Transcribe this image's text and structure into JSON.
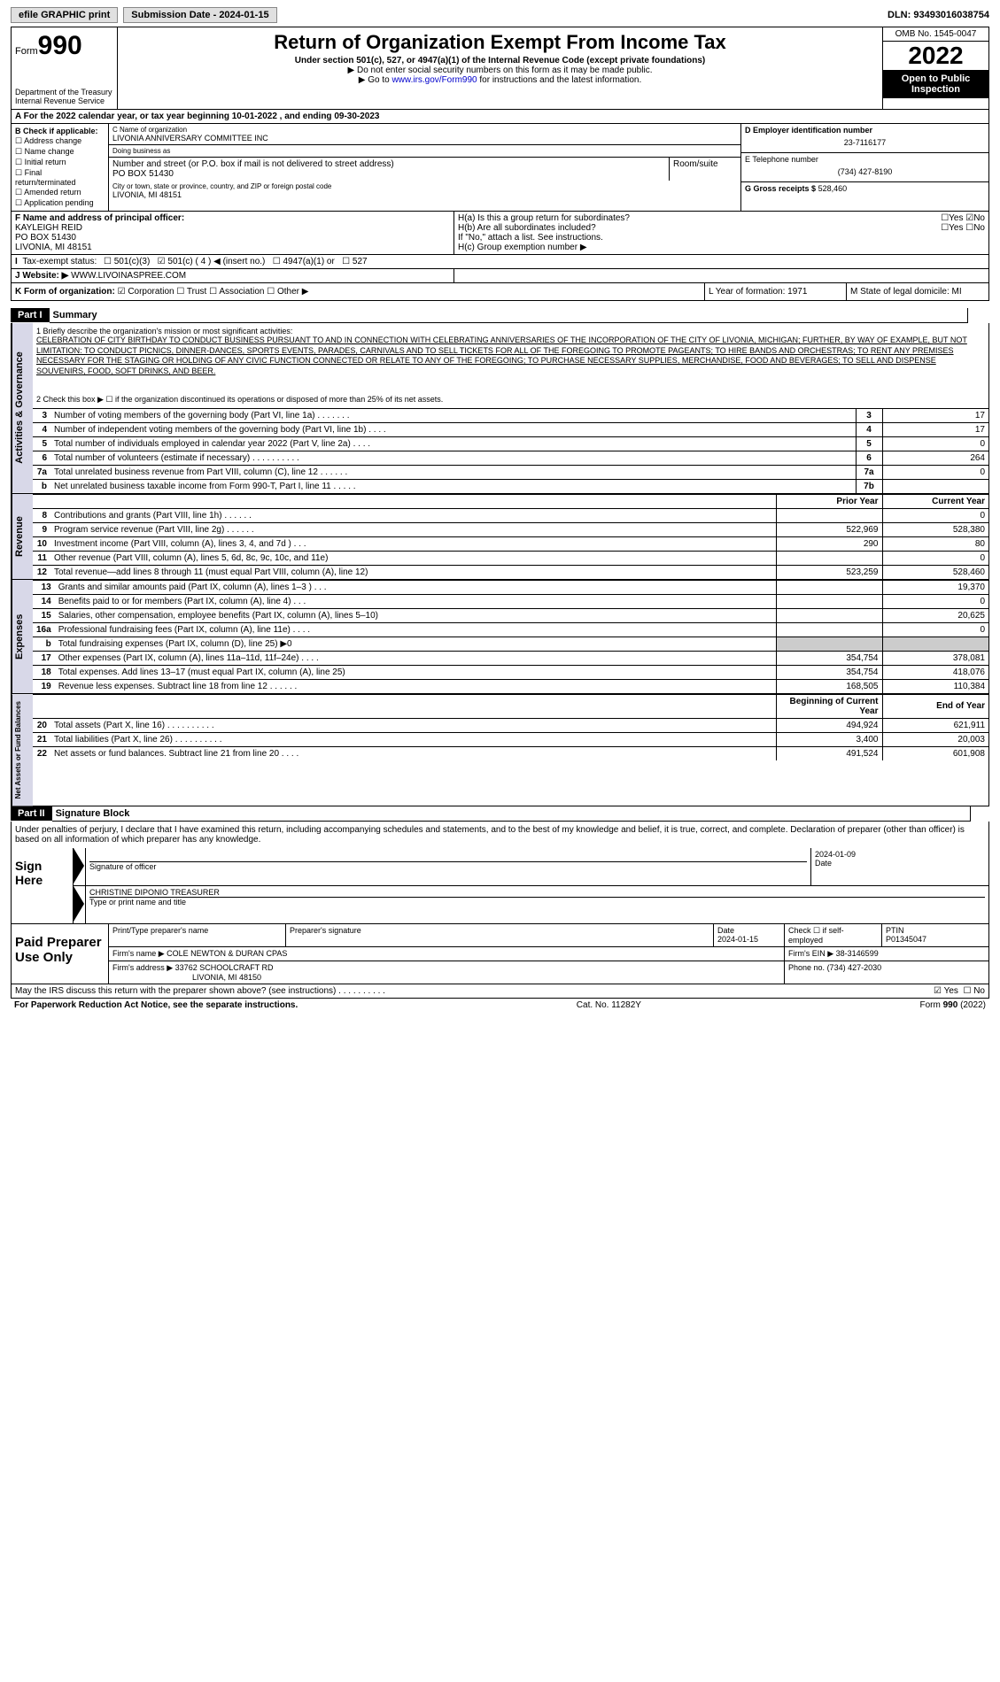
{
  "topbar": {
    "efile": "efile GRAPHIC print",
    "submission": "Submission Date - 2024-01-15",
    "dln": "DLN: 93493016038754"
  },
  "header": {
    "form_word": "Form",
    "form_num": "990",
    "dept": "Department of the Treasury Internal Revenue Service",
    "title": "Return of Organization Exempt From Income Tax",
    "sub": "Under section 501(c), 527, or 4947(a)(1) of the Internal Revenue Code (except private foundations)",
    "inst1": "▶ Do not enter social security numbers on this form as it may be made public.",
    "inst2_pre": "▶ Go to ",
    "inst2_link": "www.irs.gov/Form990",
    "inst2_post": " for instructions and the latest information.",
    "omb": "OMB No. 1545-0047",
    "year": "2022",
    "inspect": "Open to Public Inspection"
  },
  "rowA": "A For the 2022 calendar year, or tax year beginning 10-01-2022   , and ending 09-30-2023",
  "colB": {
    "title": "B Check if applicable:",
    "items": [
      "Address change",
      "Name change",
      "Initial return",
      "Final return/terminated",
      "Amended return",
      "Application pending"
    ]
  },
  "colC": {
    "name_lbl": "C Name of organization",
    "name": "LIVONIA ANNIVERSARY COMMITTEE INC",
    "dba_lbl": "Doing business as",
    "dba": "",
    "addr_lbl": "Number and street (or P.O. box if mail is not delivered to street address)",
    "addr": "PO BOX 51430",
    "room_lbl": "Room/suite",
    "city_lbl": "City or town, state or province, country, and ZIP or foreign postal code",
    "city": "LIVONIA, MI  48151"
  },
  "colD": {
    "d_lbl": "D Employer identification number",
    "ein": "23-7116177",
    "e_lbl": "E Telephone number",
    "phone": "(734) 427-8190",
    "g_lbl": "G Gross receipts $",
    "g_val": "528,460"
  },
  "rowF": {
    "f_lbl": "F  Name and address of principal officer:",
    "f_name": "KAYLEIGH REID",
    "f_addr1": "PO BOX 51430",
    "f_addr2": "LIVONIA, MI  48151",
    "ha": "H(a)  Is this a group return for subordinates?",
    "hb": "H(b)  Are all subordinates included?",
    "hb_note": "If \"No,\" attach a list. See instructions.",
    "hc": "H(c)  Group exemption number ▶"
  },
  "taxStatus": {
    "lbl": "I  Tax-exempt status:",
    "opts": [
      "501(c)(3)",
      "501(c) ( 4 ) ◀ (insert no.)",
      "4947(a)(1) or",
      "527"
    ]
  },
  "website": {
    "lbl": "J  Website: ▶",
    "val": " WWW.LIVOINASPREE.COM"
  },
  "rowK": {
    "k_lbl": "K Form of organization:",
    "k_opts": [
      "Corporation",
      "Trust",
      "Association",
      "Other ▶"
    ],
    "l": "L Year of formation: 1971",
    "m": "M State of legal domicile: MI"
  },
  "part1": {
    "hdr": "Part I",
    "title": "Summary",
    "vtab_gov": "Activities & Governance",
    "vtab_rev": "Revenue",
    "vtab_exp": "Expenses",
    "vtab_net": "Net Assets or Fund Balances",
    "q1": "1   Briefly describe the organization's mission or most significant activities:",
    "mission": "CELEBRATION OF CITY BIRTHDAY TO CONDUCT BUSINESS PURSUANT TO AND IN CONNECTION WITH CELEBRATING ANNIVERSARIES OF THE INCORPORATION OF THE CITY OF LIVONIA, MICHIGAN; FURTHER, BY WAY OF EXAMPLE, BUT NOT LIMITATION: TO CONDUCT PICNICS, DINNER-DANCES, SPORTS EVENTS, PARADES, CARNIVALS AND TO SELL TICKETS FOR ALL OF THE FOREGOING TO PROMOTE PAGEANTS; TO HIRE BANDS AND ORCHESTRAS; TO RENT ANY PREMISES NECESSARY FOR THE STAGING OR HOLDING OF ANY CIVIC FUNCTION CONNECTED OR RELATE TO ANY OF THE FOREGOING; TO PURCHASE NECESSARY SUPPLIES, MERCHANDISE, FOOD AND BEVERAGES; TO SELL AND DISPENSE SOUVENIRS, FOOD, SOFT DRINKS, AND BEER.",
    "q2": "2   Check this box ▶ ☐ if the organization discontinued its operations or disposed of more than 25% of its net assets.",
    "rows_gov": [
      {
        "n": "3",
        "desc": "Number of voting members of the governing body (Part VI, line 1a)   .    .    .    .    .    .    .",
        "box": "3",
        "val": "17"
      },
      {
        "n": "4",
        "desc": "Number of independent voting members of the governing body (Part VI, line 1b)   .    .    .    .",
        "box": "4",
        "val": "17"
      },
      {
        "n": "5",
        "desc": "Total number of individuals employed in calendar year 2022 (Part V, line 2a)   .    .    .    .",
        "box": "5",
        "val": "0"
      },
      {
        "n": "6",
        "desc": "Total number of volunteers (estimate if necessary)   .    .    .    .    .    .    .    .    .    .",
        "box": "6",
        "val": "264"
      },
      {
        "n": "7a",
        "desc": "Total unrelated business revenue from Part VIII, column (C), line 12   .    .    .    .    .    .",
        "box": "7a",
        "val": "0"
      },
      {
        "n": "b",
        "desc": "Net unrelated business taxable income from Form 990-T, Part I, line 11   .    .    .    .    .",
        "box": "7b",
        "val": ""
      }
    ],
    "col_hdrs": {
      "prior": "Prior Year",
      "current": "Current Year"
    },
    "rows_rev": [
      {
        "n": "8",
        "desc": "Contributions and grants (Part VIII, line 1h)   .    .    .    .    .    .",
        "p": "",
        "c": "0"
      },
      {
        "n": "9",
        "desc": "Program service revenue (Part VIII, line 2g)   .    .    .    .    .    .",
        "p": "522,969",
        "c": "528,380"
      },
      {
        "n": "10",
        "desc": "Investment income (Part VIII, column (A), lines 3, 4, and 7d )   .    .    .",
        "p": "290",
        "c": "80"
      },
      {
        "n": "11",
        "desc": "Other revenue (Part VIII, column (A), lines 5, 6d, 8c, 9c, 10c, and 11e)",
        "p": "",
        "c": "0"
      },
      {
        "n": "12",
        "desc": "Total revenue—add lines 8 through 11 (must equal Part VIII, column (A), line 12)",
        "p": "523,259",
        "c": "528,460"
      }
    ],
    "rows_exp": [
      {
        "n": "13",
        "desc": "Grants and similar amounts paid (Part IX, column (A), lines 1–3 )   .    .    .",
        "p": "",
        "c": "19,370"
      },
      {
        "n": "14",
        "desc": "Benefits paid to or for members (Part IX, column (A), line 4)   .    .    .",
        "p": "",
        "c": "0"
      },
      {
        "n": "15",
        "desc": "Salaries, other compensation, employee benefits (Part IX, column (A), lines 5–10)",
        "p": "",
        "c": "20,625"
      },
      {
        "n": "16a",
        "desc": "Professional fundraising fees (Part IX, column (A), line 11e)   .    .    .    .",
        "p": "",
        "c": "0"
      },
      {
        "n": "b",
        "desc": "Total fundraising expenses (Part IX, column (D), line 25) ▶0",
        "p": "shade",
        "c": "shade"
      },
      {
        "n": "17",
        "desc": "Other expenses (Part IX, column (A), lines 11a–11d, 11f–24e)   .    .    .    .",
        "p": "354,754",
        "c": "378,081"
      },
      {
        "n": "18",
        "desc": "Total expenses. Add lines 13–17 (must equal Part IX, column (A), line 25)",
        "p": "354,754",
        "c": "418,076"
      },
      {
        "n": "19",
        "desc": "Revenue less expenses. Subtract line 18 from line 12   .    .    .    .    .    .",
        "p": "168,505",
        "c": "110,384"
      }
    ],
    "net_hdrs": {
      "beg": "Beginning of Current Year",
      "end": "End of Year"
    },
    "rows_net": [
      {
        "n": "20",
        "desc": "Total assets (Part X, line 16)   .    .    .    .    .    .    .    .    .    .",
        "p": "494,924",
        "c": "621,911"
      },
      {
        "n": "21",
        "desc": "Total liabilities (Part X, line 26)   .    .    .    .    .    .    .    .    .    .",
        "p": "3,400",
        "c": "20,003"
      },
      {
        "n": "22",
        "desc": "Net assets or fund balances. Subtract line 21 from line 20   .    .    .    .",
        "p": "491,524",
        "c": "601,908"
      }
    ]
  },
  "part2": {
    "hdr": "Part II",
    "title": "Signature Block",
    "intro": "Under penalties of perjury, I declare that I have examined this return, including accompanying schedules and statements, and to the best of my knowledge and belief, it is true, correct, and complete. Declaration of preparer (other than officer) is based on all information of which preparer has any knowledge.",
    "sign_here": "Sign Here",
    "sig_officer_lbl": "Signature of officer",
    "date_lbl": "Date",
    "sig_date": "2024-01-09",
    "officer_name": "CHRISTINE DIPONIO  TREASURER",
    "officer_lbl": "Type or print name and title",
    "paid": "Paid Preparer Use Only",
    "p_name_lbl": "Print/Type preparer's name",
    "p_sig_lbl": "Preparer's signature",
    "p_date_lbl": "Date",
    "p_date": "2024-01-15",
    "p_check_lbl": "Check ☐ if self-employed",
    "p_ptin_lbl": "PTIN",
    "p_ptin": "P01345047",
    "firm_name_lbl": "Firm's name      ▶",
    "firm_name": "COLE NEWTON & DURAN CPAS",
    "firm_ein_lbl": "Firm's EIN ▶",
    "firm_ein": "38-3146599",
    "firm_addr_lbl": "Firm's address ▶",
    "firm_addr": "33762 SCHOOLCRAFT RD",
    "firm_city": "LIVONIA, MI  48150",
    "firm_phone_lbl": "Phone no.",
    "firm_phone": "(734) 427-2030",
    "discuss": "May the IRS discuss this return with the preparer shown above? (see instructions)   .    .    .    .    .    .    .    .    .    .",
    "discuss_yes": "Yes",
    "discuss_no": "No"
  },
  "footer": {
    "pra": "For Paperwork Reduction Act Notice, see the separate instructions.",
    "cat": "Cat. No. 11282Y",
    "form": "Form 990 (2022)"
  }
}
